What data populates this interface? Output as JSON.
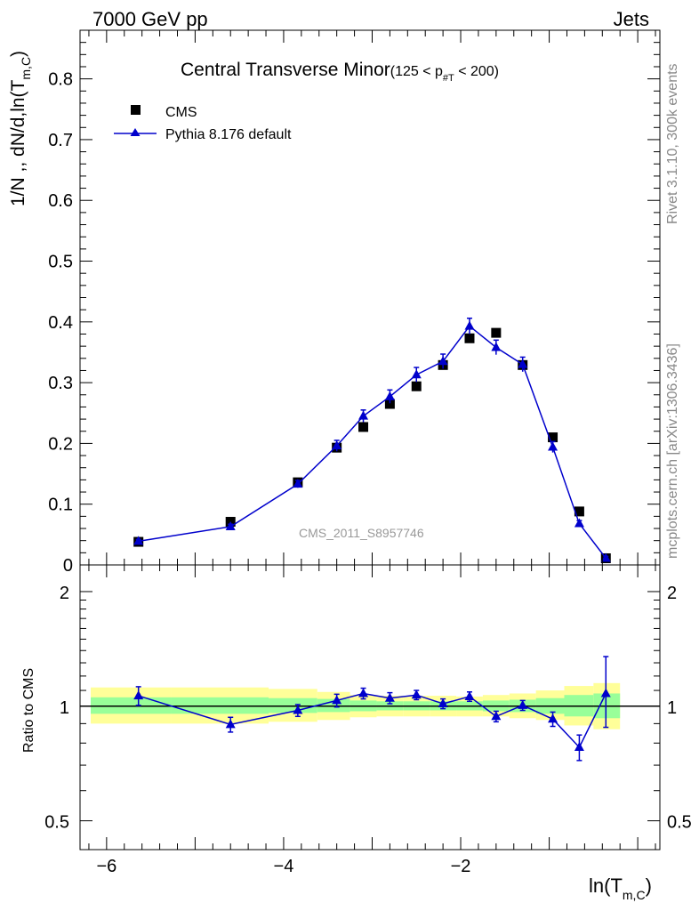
{
  "header": {
    "energy_label": "7000 GeV pp",
    "process_label": "Jets"
  },
  "side_labels": {
    "rivet": "Rivet 3.1.10,  300k events",
    "mcplots": "mcplots.cern.ch [arXiv:1306.3436]"
  },
  "chart_data": [
    {
      "type": "scatter",
      "panel": "main",
      "title": "Central Transverse Minor",
      "title_cut": "(125 < p",
      "title_cut_sub": "#T",
      "title_cut_end": "  < 200)",
      "ylabel": "1/N ,, dN/d,ln(T",
      "ylabel_sub": "m,C",
      "ylabel_end": ")",
      "xlabel": "ln(T",
      "xlabel_sub": "m,C",
      "xlabel_end": ")",
      "watermark": "CMS_2011_S8957746",
      "xlim": [
        -6.3,
        0.25
      ],
      "ylim": [
        0,
        0.88
      ],
      "yticks": [
        {
          "v": 0,
          "label": "0"
        },
        {
          "v": 0.1,
          "label": "0.1"
        },
        {
          "v": 0.2,
          "label": "0.2"
        },
        {
          "v": 0.3,
          "label": "0.3"
        },
        {
          "v": 0.4,
          "label": "0.4"
        },
        {
          "v": 0.5,
          "label": "0.5"
        },
        {
          "v": 0.6,
          "label": "0.6"
        },
        {
          "v": 0.7,
          "label": "0.7"
        },
        {
          "v": 0.8,
          "label": "0.8"
        }
      ],
      "xticks": [
        {
          "v": -6,
          "label": "−6"
        },
        {
          "v": -4,
          "label": "−4"
        },
        {
          "v": -2,
          "label": "−2"
        }
      ],
      "legend": [
        {
          "name": "CMS",
          "marker": "square"
        },
        {
          "name": "Pythia 8.176 default",
          "marker": "triangle"
        }
      ],
      "series": [
        {
          "name": "CMS",
          "color": "#000000",
          "x": [
            -5.64,
            -4.6,
            -3.84,
            -3.4,
            -3.1,
            -2.8,
            -2.5,
            -2.2,
            -1.9,
            -1.6,
            -1.3,
            -0.96,
            -0.66,
            -0.36
          ],
          "y": [
            0.038,
            0.071,
            0.136,
            0.193,
            0.227,
            0.265,
            0.294,
            0.329,
            0.373,
            0.382,
            0.329,
            0.21,
            0.088,
            0.011
          ]
        },
        {
          "name": "Pythia 8.176 default",
          "color": "#0000cc",
          "x": [
            -5.64,
            -4.6,
            -3.84,
            -3.4,
            -3.1,
            -2.8,
            -2.5,
            -2.2,
            -1.9,
            -1.6,
            -1.3,
            -0.96,
            -0.66,
            -0.36
          ],
          "y": [
            0.039,
            0.063,
            0.133,
            0.196,
            0.245,
            0.277,
            0.313,
            0.335,
            0.393,
            0.358,
            0.33,
            0.194,
            0.068,
            0.011
          ],
          "err": [
            0.003,
            0.004,
            0.006,
            0.009,
            0.01,
            0.011,
            0.012,
            0.012,
            0.013,
            0.012,
            0.012,
            0.009,
            0.005,
            0.003
          ]
        }
      ]
    },
    {
      "type": "line",
      "panel": "ratio",
      "ylabel": "Ratio to CMS",
      "yscale": "log",
      "ylim": [
        0.42,
        2.35
      ],
      "yticks": [
        {
          "v": 0.5,
          "label": "0.5"
        },
        {
          "v": 1,
          "label": "1"
        },
        {
          "v": 2,
          "label": "2"
        }
      ],
      "bands": {
        "edges": [
          -6.3,
          -5.27,
          -4.17,
          -3.62,
          -3.25,
          -2.95,
          -2.65,
          -2.35,
          -2.05,
          -1.75,
          -1.45,
          -1.15,
          -0.83,
          -0.5,
          -0.2
        ],
        "yellow_lo": [
          0.9,
          0.9,
          0.91,
          0.92,
          0.935,
          0.94,
          0.94,
          0.94,
          0.94,
          0.94,
          0.93,
          0.92,
          0.89,
          0.87
        ],
        "yellow_hi": [
          1.12,
          1.12,
          1.11,
          1.09,
          1.07,
          1.065,
          1.065,
          1.065,
          1.06,
          1.07,
          1.08,
          1.1,
          1.13,
          1.15
        ],
        "green_lo": [
          0.955,
          0.955,
          0.96,
          0.965,
          0.97,
          0.975,
          0.975,
          0.975,
          0.975,
          0.97,
          0.965,
          0.955,
          0.94,
          0.93
        ],
        "green_hi": [
          1.055,
          1.055,
          1.05,
          1.045,
          1.035,
          1.03,
          1.03,
          1.03,
          1.03,
          1.035,
          1.04,
          1.05,
          1.07,
          1.08
        ]
      },
      "series": [
        {
          "name": "Pythia 8.176 default / CMS",
          "color": "#0000cc",
          "x": [
            -5.64,
            -4.6,
            -3.84,
            -3.4,
            -3.1,
            -2.8,
            -2.5,
            -2.2,
            -1.9,
            -1.6,
            -1.3,
            -0.96,
            -0.66,
            -0.36
          ],
          "y": [
            1.065,
            0.895,
            0.975,
            1.035,
            1.08,
            1.05,
            1.07,
            1.015,
            1.06,
            0.94,
            1.005,
            0.925,
            0.78,
            1.08
          ],
          "err_lo": [
            0.06,
            0.04,
            0.035,
            0.04,
            0.035,
            0.035,
            0.03,
            0.03,
            0.03,
            0.03,
            0.03,
            0.04,
            0.06,
            0.2
          ],
          "err_hi": [
            0.06,
            0.04,
            0.035,
            0.04,
            0.035,
            0.035,
            0.03,
            0.03,
            0.03,
            0.03,
            0.03,
            0.04,
            0.06,
            0.27
          ]
        }
      ]
    }
  ]
}
